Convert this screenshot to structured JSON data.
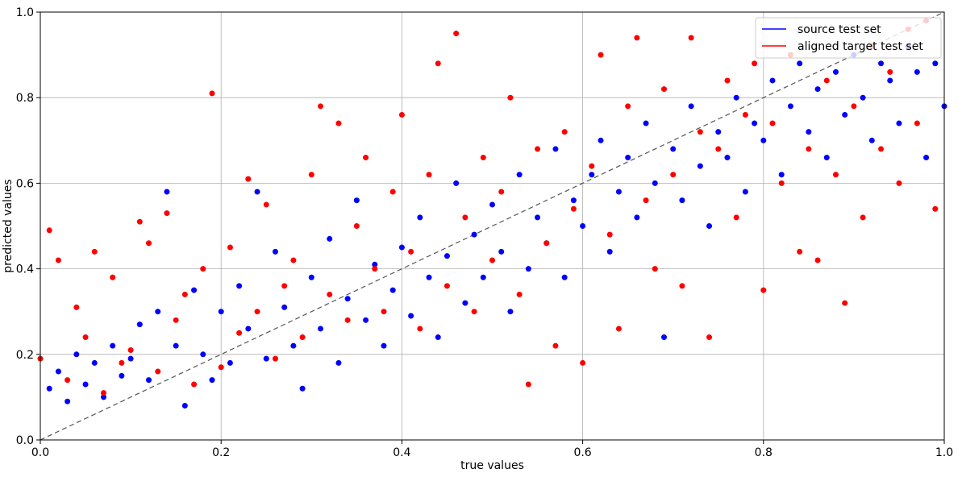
{
  "chart_data": {
    "type": "scatter",
    "title": "",
    "xlabel": "true values",
    "ylabel": "predicted values",
    "xlim": [
      0.0,
      1.0
    ],
    "ylim": [
      0.0,
      1.0
    ],
    "xticks": [
      "0.0",
      "0.2",
      "0.4",
      "0.6",
      "0.8",
      "1.0"
    ],
    "yticks": [
      "0.0",
      "0.2",
      "0.4",
      "0.6",
      "0.8",
      "1.0"
    ],
    "grid": true,
    "legend_position": "top-right",
    "reference_line": {
      "style": "dashed",
      "color": "#555555",
      "from": [
        0,
        0
      ],
      "to": [
        1,
        1
      ]
    },
    "series": [
      {
        "name": "source test set",
        "color": "#0000ff",
        "points": [
          [
            0.01,
            0.12
          ],
          [
            0.02,
            0.16
          ],
          [
            0.03,
            0.09
          ],
          [
            0.04,
            0.2
          ],
          [
            0.05,
            0.13
          ],
          [
            0.06,
            0.18
          ],
          [
            0.07,
            0.1
          ],
          [
            0.08,
            0.22
          ],
          [
            0.09,
            0.15
          ],
          [
            0.1,
            0.19
          ],
          [
            0.11,
            0.27
          ],
          [
            0.12,
            0.14
          ],
          [
            0.13,
            0.3
          ],
          [
            0.14,
            0.58
          ],
          [
            0.15,
            0.22
          ],
          [
            0.16,
            0.08
          ],
          [
            0.17,
            0.35
          ],
          [
            0.18,
            0.2
          ],
          [
            0.19,
            0.14
          ],
          [
            0.2,
            0.3
          ],
          [
            0.21,
            0.18
          ],
          [
            0.22,
            0.36
          ],
          [
            0.23,
            0.26
          ],
          [
            0.24,
            0.58
          ],
          [
            0.25,
            0.19
          ],
          [
            0.26,
            0.44
          ],
          [
            0.27,
            0.31
          ],
          [
            0.28,
            0.22
          ],
          [
            0.29,
            0.12
          ],
          [
            0.3,
            0.38
          ],
          [
            0.31,
            0.26
          ],
          [
            0.32,
            0.47
          ],
          [
            0.33,
            0.18
          ],
          [
            0.34,
            0.33
          ],
          [
            0.35,
            0.56
          ],
          [
            0.36,
            0.28
          ],
          [
            0.37,
            0.41
          ],
          [
            0.38,
            0.22
          ],
          [
            0.39,
            0.35
          ],
          [
            0.4,
            0.45
          ],
          [
            0.41,
            0.29
          ],
          [
            0.42,
            0.52
          ],
          [
            0.43,
            0.38
          ],
          [
            0.44,
            0.24
          ],
          [
            0.45,
            0.43
          ],
          [
            0.46,
            0.6
          ],
          [
            0.47,
            0.32
          ],
          [
            0.48,
            0.48
          ],
          [
            0.49,
            0.38
          ],
          [
            0.5,
            0.55
          ],
          [
            0.51,
            0.44
          ],
          [
            0.52,
            0.3
          ],
          [
            0.53,
            0.62
          ],
          [
            0.54,
            0.4
          ],
          [
            0.55,
            0.52
          ],
          [
            0.56,
            0.46
          ],
          [
            0.57,
            0.68
          ],
          [
            0.58,
            0.38
          ],
          [
            0.59,
            0.56
          ],
          [
            0.6,
            0.5
          ],
          [
            0.61,
            0.62
          ],
          [
            0.62,
            0.7
          ],
          [
            0.63,
            0.44
          ],
          [
            0.64,
            0.58
          ],
          [
            0.65,
            0.66
          ],
          [
            0.66,
            0.52
          ],
          [
            0.67,
            0.74
          ],
          [
            0.68,
            0.6
          ],
          [
            0.69,
            0.24
          ],
          [
            0.7,
            0.68
          ],
          [
            0.71,
            0.56
          ],
          [
            0.72,
            0.78
          ],
          [
            0.73,
            0.64
          ],
          [
            0.74,
            0.5
          ],
          [
            0.75,
            0.72
          ],
          [
            0.76,
            0.66
          ],
          [
            0.77,
            0.8
          ],
          [
            0.78,
            0.58
          ],
          [
            0.79,
            0.74
          ],
          [
            0.8,
            0.7
          ],
          [
            0.81,
            0.84
          ],
          [
            0.82,
            0.62
          ],
          [
            0.83,
            0.78
          ],
          [
            0.84,
            0.88
          ],
          [
            0.85,
            0.72
          ],
          [
            0.86,
            0.82
          ],
          [
            0.87,
            0.66
          ],
          [
            0.88,
            0.86
          ],
          [
            0.89,
            0.76
          ],
          [
            0.9,
            0.9
          ],
          [
            0.91,
            0.8
          ],
          [
            0.92,
            0.7
          ],
          [
            0.93,
            0.88
          ],
          [
            0.94,
            0.84
          ],
          [
            0.95,
            0.74
          ],
          [
            0.96,
            0.92
          ],
          [
            0.97,
            0.86
          ],
          [
            0.98,
            0.66
          ],
          [
            0.99,
            0.88
          ],
          [
            1.0,
            0.78
          ]
        ]
      },
      {
        "name": "aligned target test set",
        "color": "#ff0000",
        "points": [
          [
            0.0,
            0.19
          ],
          [
            0.01,
            0.49
          ],
          [
            0.02,
            0.42
          ],
          [
            0.03,
            0.14
          ],
          [
            0.04,
            0.31
          ],
          [
            0.05,
            0.24
          ],
          [
            0.06,
            0.44
          ],
          [
            0.07,
            0.11
          ],
          [
            0.08,
            0.38
          ],
          [
            0.09,
            0.18
          ],
          [
            0.1,
            0.21
          ],
          [
            0.11,
            0.51
          ],
          [
            0.12,
            0.46
          ],
          [
            0.13,
            0.16
          ],
          [
            0.14,
            0.53
          ],
          [
            0.15,
            0.28
          ],
          [
            0.16,
            0.34
          ],
          [
            0.17,
            0.13
          ],
          [
            0.18,
            0.4
          ],
          [
            0.19,
            0.81
          ],
          [
            0.2,
            0.17
          ],
          [
            0.21,
            0.45
          ],
          [
            0.22,
            0.25
          ],
          [
            0.23,
            0.61
          ],
          [
            0.24,
            0.3
          ],
          [
            0.25,
            0.55
          ],
          [
            0.26,
            0.19
          ],
          [
            0.27,
            0.36
          ],
          [
            0.28,
            0.42
          ],
          [
            0.29,
            0.24
          ],
          [
            0.3,
            0.62
          ],
          [
            0.31,
            0.78
          ],
          [
            0.32,
            0.34
          ],
          [
            0.33,
            0.74
          ],
          [
            0.34,
            0.28
          ],
          [
            0.35,
            0.5
          ],
          [
            0.36,
            0.66
          ],
          [
            0.37,
            0.4
          ],
          [
            0.38,
            0.3
          ],
          [
            0.39,
            0.58
          ],
          [
            0.4,
            0.76
          ],
          [
            0.41,
            0.44
          ],
          [
            0.42,
            0.26
          ],
          [
            0.43,
            0.62
          ],
          [
            0.44,
            0.88
          ],
          [
            0.45,
            0.36
          ],
          [
            0.46,
            0.95
          ],
          [
            0.47,
            0.52
          ],
          [
            0.48,
            0.3
          ],
          [
            0.49,
            0.66
          ],
          [
            0.5,
            0.42
          ],
          [
            0.51,
            0.58
          ],
          [
            0.52,
            0.8
          ],
          [
            0.53,
            0.34
          ],
          [
            0.54,
            0.13
          ],
          [
            0.55,
            0.68
          ],
          [
            0.56,
            0.46
          ],
          [
            0.57,
            0.22
          ],
          [
            0.58,
            0.72
          ],
          [
            0.59,
            0.54
          ],
          [
            0.6,
            0.18
          ],
          [
            0.61,
            0.64
          ],
          [
            0.62,
            0.9
          ],
          [
            0.63,
            0.48
          ],
          [
            0.64,
            0.26
          ],
          [
            0.65,
            0.78
          ],
          [
            0.66,
            0.94
          ],
          [
            0.67,
            0.56
          ],
          [
            0.68,
            0.4
          ],
          [
            0.69,
            0.82
          ],
          [
            0.7,
            0.62
          ],
          [
            0.71,
            0.36
          ],
          [
            0.72,
            0.94
          ],
          [
            0.73,
            0.72
          ],
          [
            0.74,
            0.24
          ],
          [
            0.75,
            0.68
          ],
          [
            0.76,
            0.84
          ],
          [
            0.77,
            0.52
          ],
          [
            0.78,
            0.76
          ],
          [
            0.79,
            0.88
          ],
          [
            0.8,
            0.35
          ],
          [
            0.81,
            0.74
          ],
          [
            0.82,
            0.6
          ],
          [
            0.83,
            0.9
          ],
          [
            0.84,
            0.44
          ],
          [
            0.85,
            0.68
          ],
          [
            0.86,
            0.42
          ],
          [
            0.87,
            0.84
          ],
          [
            0.88,
            0.62
          ],
          [
            0.89,
            0.32
          ],
          [
            0.9,
            0.78
          ],
          [
            0.91,
            0.52
          ],
          [
            0.92,
            0.92
          ],
          [
            0.93,
            0.68
          ],
          [
            0.94,
            0.86
          ],
          [
            0.95,
            0.6
          ],
          [
            0.96,
            0.96
          ],
          [
            0.97,
            0.74
          ],
          [
            0.98,
            0.98
          ],
          [
            0.99,
            0.54
          ]
        ]
      }
    ]
  }
}
